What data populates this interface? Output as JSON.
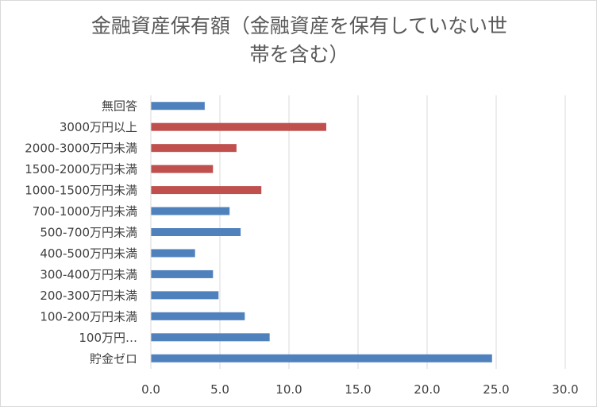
{
  "chart_data": {
    "type": "bar",
    "orientation": "horizontal",
    "title_lines": [
      "金融資産保有額（金融資産を保有していない世",
      "帯を含む）"
    ],
    "categories": [
      "無回答",
      "3000万円以上",
      "2000-3000万円未満",
      "1500-2000万円未満",
      "1000-1500万円未満",
      "700-1000万円未満",
      "500-700万円未満",
      "400-500万円未満",
      "300-400万円未満",
      "200-300万円未満",
      "100-200万円未満",
      "100万円…",
      "貯金ゼロ"
    ],
    "values": [
      3.9,
      12.7,
      6.2,
      4.5,
      8.0,
      5.7,
      6.5,
      3.2,
      4.5,
      4.9,
      6.8,
      8.6,
      24.7
    ],
    "bar_colors": [
      "#4f81bd",
      "#c0504d",
      "#c0504d",
      "#c0504d",
      "#c0504d",
      "#4f81bd",
      "#4f81bd",
      "#4f81bd",
      "#4f81bd",
      "#4f81bd",
      "#4f81bd",
      "#4f81bd",
      "#4f81bd"
    ],
    "xlim": [
      0,
      30
    ],
    "x_ticks": [
      "0.0",
      "5.0",
      "10.0",
      "15.0",
      "20.0",
      "25.0",
      "30.0"
    ],
    "grid": true,
    "xlabel": "",
    "ylabel": ""
  },
  "colors": {
    "blue_series": "#4f81bd",
    "red_series": "#c0504d",
    "gridline": "#d9d9d9",
    "text": "#404040"
  }
}
